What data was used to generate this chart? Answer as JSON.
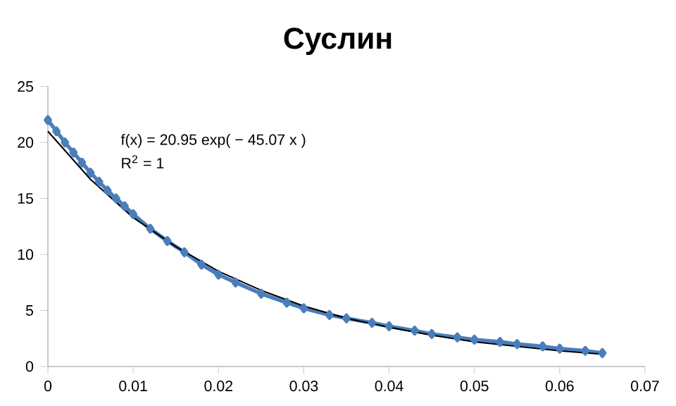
{
  "chart_data": {
    "type": "line",
    "title": "Суслин",
    "series": [
      {
        "color": "#4a7ebb",
        "marker": "diamond",
        "x": [
          0,
          0.001,
          0.002,
          0.003,
          0.004,
          0.005,
          0.006,
          0.007,
          0.008,
          0.009,
          0.01,
          0.012,
          0.014,
          0.016,
          0.018,
          0.02,
          0.022,
          0.025,
          0.028,
          0.03,
          0.033,
          0.035,
          0.038,
          0.04,
          0.043,
          0.045,
          0.048,
          0.05,
          0.053,
          0.055,
          0.058,
          0.06,
          0.063,
          0.065
        ],
        "values": [
          22,
          21.0,
          20.0,
          19.1,
          18.2,
          17.3,
          16.5,
          15.7,
          15.0,
          14.3,
          13.6,
          12.3,
          11.2,
          10.2,
          9.1,
          8.2,
          7.5,
          6.5,
          5.7,
          5.2,
          4.6,
          4.3,
          3.9,
          3.6,
          3.2,
          2.9,
          2.6,
          2.4,
          2.2,
          2.0,
          1.8,
          1.6,
          1.4,
          1.2
        ]
      },
      {
        "color": "#000000",
        "marker": "none",
        "x": [
          0,
          0.005,
          0.01,
          0.015,
          0.02,
          0.025,
          0.03,
          0.035,
          0.04,
          0.045,
          0.05,
          0.055,
          0.06,
          0.065
        ],
        "values": [
          21.0,
          16.7,
          13.3,
          10.7,
          8.5,
          6.8,
          5.4,
          4.3,
          3.5,
          2.8,
          2.2,
          1.8,
          1.4,
          1.1
        ]
      }
    ],
    "annotations": [
      "f(x) = 20.95 exp( − 45.07 x )",
      "R$^{2}$ = 1"
    ],
    "xlim": [
      0,
      0.07
    ],
    "xticks": [
      0,
      0.01,
      0.02,
      0.03,
      0.04,
      0.05,
      0.06,
      0.07
    ],
    "ylim": [
      0,
      25
    ],
    "yticks": [
      0,
      5,
      10,
      15,
      20,
      25
    ],
    "grid": false,
    "line_style": "solid"
  }
}
